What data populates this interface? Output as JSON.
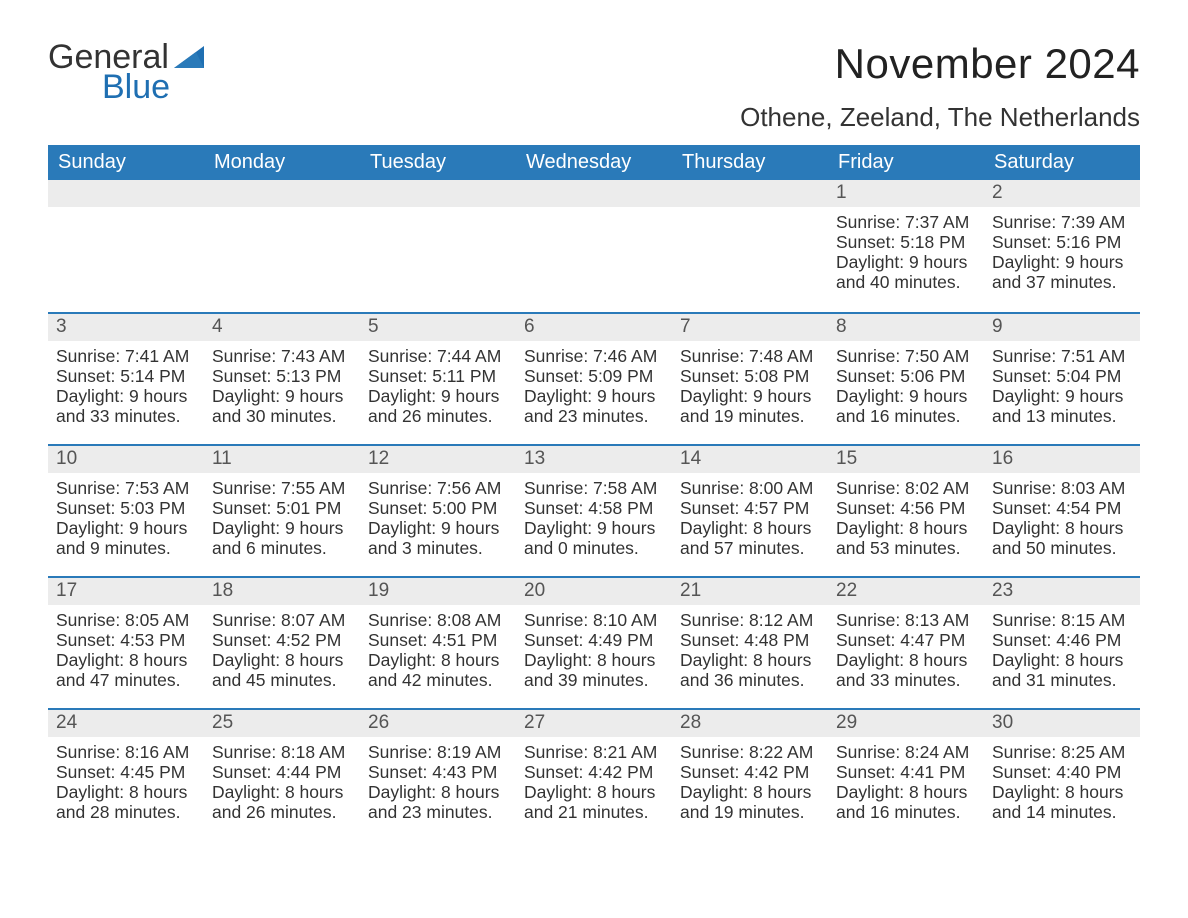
{
  "brand": {
    "name_part1": "General",
    "name_part2": "Blue",
    "color_general": "#333333",
    "color_blue": "#1f6fb2",
    "sail_color": "#1f6fb2"
  },
  "title": "November 2024",
  "location": "Othene, Zeeland, The Netherlands",
  "colors": {
    "header_bg": "#2a7ab9",
    "header_text": "#ffffff",
    "week_divider": "#2a7ab9",
    "daynum_bg": "#ececec",
    "daynum_text": "#555555",
    "body_text": "#333333",
    "page_bg": "#ffffff"
  },
  "typography": {
    "title_fontsize": 42,
    "location_fontsize": 26,
    "weekday_fontsize": 20,
    "daynum_fontsize": 19,
    "body_fontsize": 17.5,
    "font_family": "Arial"
  },
  "calendar": {
    "type": "table",
    "weekdays": [
      "Sunday",
      "Monday",
      "Tuesday",
      "Wednesday",
      "Thursday",
      "Friday",
      "Saturday"
    ],
    "weeks": [
      [
        null,
        null,
        null,
        null,
        null,
        {
          "day": "1",
          "sunrise": "Sunrise: 7:37 AM",
          "sunset": "Sunset: 5:18 PM",
          "daylight1": "Daylight: 9 hours",
          "daylight2": "and 40 minutes."
        },
        {
          "day": "2",
          "sunrise": "Sunrise: 7:39 AM",
          "sunset": "Sunset: 5:16 PM",
          "daylight1": "Daylight: 9 hours",
          "daylight2": "and 37 minutes."
        }
      ],
      [
        {
          "day": "3",
          "sunrise": "Sunrise: 7:41 AM",
          "sunset": "Sunset: 5:14 PM",
          "daylight1": "Daylight: 9 hours",
          "daylight2": "and 33 minutes."
        },
        {
          "day": "4",
          "sunrise": "Sunrise: 7:43 AM",
          "sunset": "Sunset: 5:13 PM",
          "daylight1": "Daylight: 9 hours",
          "daylight2": "and 30 minutes."
        },
        {
          "day": "5",
          "sunrise": "Sunrise: 7:44 AM",
          "sunset": "Sunset: 5:11 PM",
          "daylight1": "Daylight: 9 hours",
          "daylight2": "and 26 minutes."
        },
        {
          "day": "6",
          "sunrise": "Sunrise: 7:46 AM",
          "sunset": "Sunset: 5:09 PM",
          "daylight1": "Daylight: 9 hours",
          "daylight2": "and 23 minutes."
        },
        {
          "day": "7",
          "sunrise": "Sunrise: 7:48 AM",
          "sunset": "Sunset: 5:08 PM",
          "daylight1": "Daylight: 9 hours",
          "daylight2": "and 19 minutes."
        },
        {
          "day": "8",
          "sunrise": "Sunrise: 7:50 AM",
          "sunset": "Sunset: 5:06 PM",
          "daylight1": "Daylight: 9 hours",
          "daylight2": "and 16 minutes."
        },
        {
          "day": "9",
          "sunrise": "Sunrise: 7:51 AM",
          "sunset": "Sunset: 5:04 PM",
          "daylight1": "Daylight: 9 hours",
          "daylight2": "and 13 minutes."
        }
      ],
      [
        {
          "day": "10",
          "sunrise": "Sunrise: 7:53 AM",
          "sunset": "Sunset: 5:03 PM",
          "daylight1": "Daylight: 9 hours",
          "daylight2": "and 9 minutes."
        },
        {
          "day": "11",
          "sunrise": "Sunrise: 7:55 AM",
          "sunset": "Sunset: 5:01 PM",
          "daylight1": "Daylight: 9 hours",
          "daylight2": "and 6 minutes."
        },
        {
          "day": "12",
          "sunrise": "Sunrise: 7:56 AM",
          "sunset": "Sunset: 5:00 PM",
          "daylight1": "Daylight: 9 hours",
          "daylight2": "and 3 minutes."
        },
        {
          "day": "13",
          "sunrise": "Sunrise: 7:58 AM",
          "sunset": "Sunset: 4:58 PM",
          "daylight1": "Daylight: 9 hours",
          "daylight2": "and 0 minutes."
        },
        {
          "day": "14",
          "sunrise": "Sunrise: 8:00 AM",
          "sunset": "Sunset: 4:57 PM",
          "daylight1": "Daylight: 8 hours",
          "daylight2": "and 57 minutes."
        },
        {
          "day": "15",
          "sunrise": "Sunrise: 8:02 AM",
          "sunset": "Sunset: 4:56 PM",
          "daylight1": "Daylight: 8 hours",
          "daylight2": "and 53 minutes."
        },
        {
          "day": "16",
          "sunrise": "Sunrise: 8:03 AM",
          "sunset": "Sunset: 4:54 PM",
          "daylight1": "Daylight: 8 hours",
          "daylight2": "and 50 minutes."
        }
      ],
      [
        {
          "day": "17",
          "sunrise": "Sunrise: 8:05 AM",
          "sunset": "Sunset: 4:53 PM",
          "daylight1": "Daylight: 8 hours",
          "daylight2": "and 47 minutes."
        },
        {
          "day": "18",
          "sunrise": "Sunrise: 8:07 AM",
          "sunset": "Sunset: 4:52 PM",
          "daylight1": "Daylight: 8 hours",
          "daylight2": "and 45 minutes."
        },
        {
          "day": "19",
          "sunrise": "Sunrise: 8:08 AM",
          "sunset": "Sunset: 4:51 PM",
          "daylight1": "Daylight: 8 hours",
          "daylight2": "and 42 minutes."
        },
        {
          "day": "20",
          "sunrise": "Sunrise: 8:10 AM",
          "sunset": "Sunset: 4:49 PM",
          "daylight1": "Daylight: 8 hours",
          "daylight2": "and 39 minutes."
        },
        {
          "day": "21",
          "sunrise": "Sunrise: 8:12 AM",
          "sunset": "Sunset: 4:48 PM",
          "daylight1": "Daylight: 8 hours",
          "daylight2": "and 36 minutes."
        },
        {
          "day": "22",
          "sunrise": "Sunrise: 8:13 AM",
          "sunset": "Sunset: 4:47 PM",
          "daylight1": "Daylight: 8 hours",
          "daylight2": "and 33 minutes."
        },
        {
          "day": "23",
          "sunrise": "Sunrise: 8:15 AM",
          "sunset": "Sunset: 4:46 PM",
          "daylight1": "Daylight: 8 hours",
          "daylight2": "and 31 minutes."
        }
      ],
      [
        {
          "day": "24",
          "sunrise": "Sunrise: 8:16 AM",
          "sunset": "Sunset: 4:45 PM",
          "daylight1": "Daylight: 8 hours",
          "daylight2": "and 28 minutes."
        },
        {
          "day": "25",
          "sunrise": "Sunrise: 8:18 AM",
          "sunset": "Sunset: 4:44 PM",
          "daylight1": "Daylight: 8 hours",
          "daylight2": "and 26 minutes."
        },
        {
          "day": "26",
          "sunrise": "Sunrise: 8:19 AM",
          "sunset": "Sunset: 4:43 PM",
          "daylight1": "Daylight: 8 hours",
          "daylight2": "and 23 minutes."
        },
        {
          "day": "27",
          "sunrise": "Sunrise: 8:21 AM",
          "sunset": "Sunset: 4:42 PM",
          "daylight1": "Daylight: 8 hours",
          "daylight2": "and 21 minutes."
        },
        {
          "day": "28",
          "sunrise": "Sunrise: 8:22 AM",
          "sunset": "Sunset: 4:42 PM",
          "daylight1": "Daylight: 8 hours",
          "daylight2": "and 19 minutes."
        },
        {
          "day": "29",
          "sunrise": "Sunrise: 8:24 AM",
          "sunset": "Sunset: 4:41 PM",
          "daylight1": "Daylight: 8 hours",
          "daylight2": "and 16 minutes."
        },
        {
          "day": "30",
          "sunrise": "Sunrise: 8:25 AM",
          "sunset": "Sunset: 4:40 PM",
          "daylight1": "Daylight: 8 hours",
          "daylight2": "and 14 minutes."
        }
      ]
    ]
  }
}
